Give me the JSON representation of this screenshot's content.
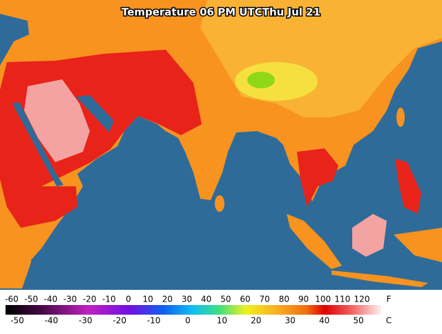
{
  "title": "Temperature 06 PM UTCThu Jul 21",
  "legend": {
    "fahrenheit": {
      "unit": "F",
      "ticks": [
        -60,
        -50,
        -40,
        -30,
        -20,
        -10,
        0,
        10,
        20,
        30,
        40,
        50,
        60,
        70,
        80,
        90,
        100,
        110,
        120
      ]
    },
    "celsius": {
      "unit": "C",
      "ticks": [
        -50,
        -40,
        -30,
        -20,
        -10,
        0,
        10,
        20,
        30,
        40,
        50
      ]
    }
  }
}
